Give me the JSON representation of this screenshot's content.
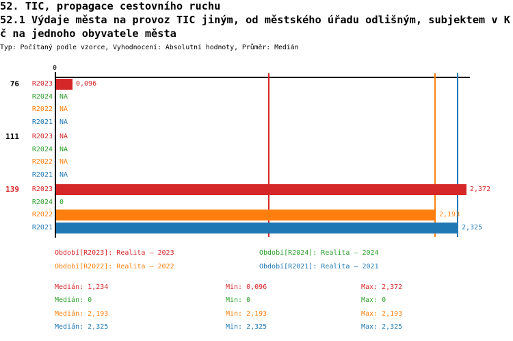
{
  "header": {
    "line1": "52. TIC, propagace cestovního ruchu",
    "line2": "52.1 Výdaje města na provoz TIC jiným, od městského úřadu odlišným, subjektem v K",
    "line3": "č na jednoho obyvatele města",
    "meta": "Typ: Počítaný podle vzorce, Vyhodnocení: Absolutní hodnoty, Průměr: Medián"
  },
  "colors": {
    "r2023": "#d62728",
    "r2024": "#2ca02c",
    "r2022": "#ff7f0e",
    "r2021": "#1f77b4",
    "axis": "#000000"
  },
  "chart_data": {
    "type": "bar",
    "orientation": "horizontal",
    "title": "52.1 Výdaje města na provoz TIC jiným, od městského úřadu odlišným, subjektem v Kč na jednoho obyvatele města",
    "axis": {
      "tick_label": "0",
      "xlim": [
        0,
        2.4
      ],
      "grid": false
    },
    "series_colors": {
      "R2023": "#d62728",
      "R2024": "#2ca02c",
      "R2022": "#ff7f0e",
      "R2021": "#1f77b4"
    },
    "groups": [
      {
        "label": "76",
        "label_color": "#000000",
        "rows": [
          {
            "series": "R2023",
            "value": 0.096,
            "value_label": "0,096"
          },
          {
            "series": "R2024",
            "value": null,
            "value_label": "NA"
          },
          {
            "series": "R2022",
            "value": null,
            "value_label": "NA"
          },
          {
            "series": "R2021",
            "value": null,
            "value_label": "NA"
          }
        ]
      },
      {
        "label": "111",
        "label_color": "#000000",
        "rows": [
          {
            "series": "R2023",
            "value": null,
            "value_label": "NA"
          },
          {
            "series": "R2024",
            "value": null,
            "value_label": "NA"
          },
          {
            "series": "R2022",
            "value": null,
            "value_label": "NA"
          },
          {
            "series": "R2021",
            "value": null,
            "value_label": "NA"
          }
        ]
      },
      {
        "label": "139",
        "label_color": "#d62728",
        "rows": [
          {
            "series": "R2023",
            "value": 2.372,
            "value_label": "2,372"
          },
          {
            "series": "R2024",
            "value": 0,
            "value_label": "0"
          },
          {
            "series": "R2022",
            "value": 2.193,
            "value_label": "2,193"
          },
          {
            "series": "R2021",
            "value": 2.325,
            "value_label": "2,325"
          }
        ]
      }
    ],
    "reference_lines": [
      {
        "series": "R2023",
        "value": 1.234,
        "color": "#d62728"
      },
      {
        "series": "R2022",
        "value": 2.193,
        "color": "#ff7f0e"
      },
      {
        "series": "R2021",
        "value": 2.325,
        "color": "#1f77b4"
      }
    ]
  },
  "legend": {
    "items": [
      {
        "label": "Období[R2023]: Realita – 2023",
        "color": "#d62728"
      },
      {
        "label": "Období[R2024]: Realita – 2024",
        "color": "#2ca02c"
      },
      {
        "label": "Období[R2022]: Realita – 2022",
        "color": "#ff7f0e"
      },
      {
        "label": "Období[R2021]: Realita – 2021",
        "color": "#1f77b4"
      }
    ]
  },
  "stats": {
    "rows": [
      {
        "median": "Medián: 1,234",
        "min": "Min: 0,096",
        "max": "Max: 2,372",
        "color": "#d62728"
      },
      {
        "median": "Medián: 0",
        "min": "Min: 0",
        "max": "Max: 0",
        "color": "#2ca02c"
      },
      {
        "median": "Medián: 2,193",
        "min": "Min: 2,193",
        "max": "Max: 2,193",
        "color": "#ff7f0e"
      },
      {
        "median": "Medián: 2,325",
        "min": "Min: 2,325",
        "max": "Max: 2,325",
        "color": "#1f77b4"
      }
    ]
  }
}
